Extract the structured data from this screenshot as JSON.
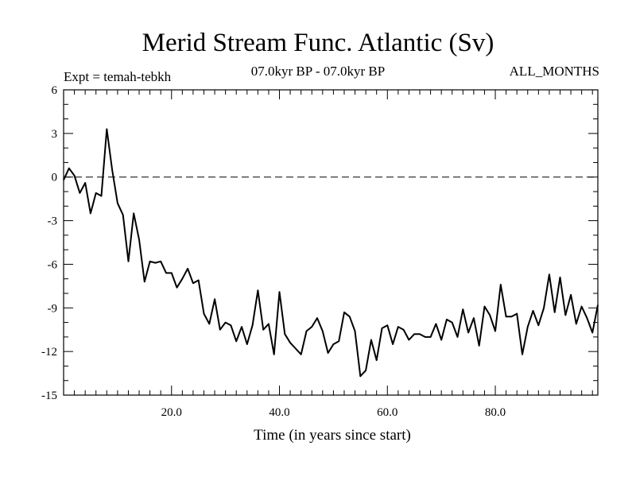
{
  "chart_data": {
    "type": "line",
    "title": "Merid Stream Func. Atlantic (Sv)",
    "subtitle": "07.0kyr BP - 07.0kyr BP",
    "left_label": "Expt = temah-tebkh",
    "right_label": "ALL_MONTHS",
    "xlabel": "Time (in years since start)",
    "ylabel": "",
    "xlim": [
      0,
      99
    ],
    "ylim": [
      -15,
      6
    ],
    "x_ticks": [
      20,
      40,
      60,
      80
    ],
    "x_tick_labels": [
      "20.0",
      "40.0",
      "60.0",
      "80.0"
    ],
    "y_ticks": [
      6,
      3,
      0,
      -3,
      -6,
      -9,
      -12,
      -15
    ],
    "y_tick_labels": [
      "6",
      "3",
      "0",
      "-3",
      "-6",
      "-9",
      "-12",
      "-15"
    ],
    "reference_line": {
      "y": 0,
      "style": "dashed"
    },
    "x": [
      0,
      1,
      2,
      3,
      4,
      5,
      6,
      7,
      8,
      9,
      10,
      11,
      12,
      13,
      14,
      15,
      16,
      17,
      18,
      19,
      20,
      21,
      22,
      23,
      24,
      25,
      26,
      27,
      28,
      29,
      30,
      31,
      32,
      33,
      34,
      35,
      36,
      37,
      38,
      39,
      40,
      41,
      42,
      43,
      44,
      45,
      46,
      47,
      48,
      49,
      50,
      51,
      52,
      53,
      54,
      55,
      56,
      57,
      58,
      59,
      60,
      61,
      62,
      63,
      64,
      65,
      66,
      67,
      68,
      69,
      70,
      71,
      72,
      73,
      74,
      75,
      76,
      77,
      78,
      79,
      80,
      81,
      82,
      83,
      84,
      85,
      86,
      87,
      88,
      89,
      90,
      91,
      92,
      93,
      94,
      95,
      96,
      97,
      98,
      99
    ],
    "values": [
      -0.2,
      0.6,
      0.1,
      -1.1,
      -0.4,
      -2.5,
      -1.1,
      -1.3,
      3.3,
      0.5,
      -1.8,
      -2.6,
      -5.8,
      -2.5,
      -4.3,
      -7.2,
      -5.8,
      -5.9,
      -5.8,
      -6.6,
      -6.6,
      -7.6,
      -7.0,
      -6.3,
      -7.3,
      -7.1,
      -9.4,
      -10.1,
      -8.4,
      -10.5,
      -10.0,
      -10.2,
      -11.3,
      -10.3,
      -11.5,
      -10.2,
      -7.8,
      -10.5,
      -10.1,
      -12.2,
      -7.9,
      -10.8,
      -11.4,
      -11.8,
      -12.2,
      -10.6,
      -10.3,
      -9.7,
      -10.6,
      -12.1,
      -11.5,
      -11.3,
      -9.3,
      -9.6,
      -10.6,
      -13.7,
      -13.3,
      -11.2,
      -12.6,
      -10.4,
      -10.2,
      -11.5,
      -10.3,
      -10.5,
      -11.2,
      -10.8,
      -10.8,
      -11.0,
      -11.0,
      -10.1,
      -11.2,
      -9.8,
      -10.0,
      -11.0,
      -9.1,
      -10.7,
      -9.7,
      -11.6,
      -8.9,
      -9.5,
      -10.6,
      -7.4,
      -9.6,
      -9.6,
      -9.4,
      -12.2,
      -10.3,
      -9.2,
      -10.2,
      -9.0,
      -6.7,
      -9.3,
      -6.9,
      -9.5,
      -8.1,
      -10.1,
      -8.9,
      -9.7,
      -10.7,
      -8.8
    ]
  }
}
